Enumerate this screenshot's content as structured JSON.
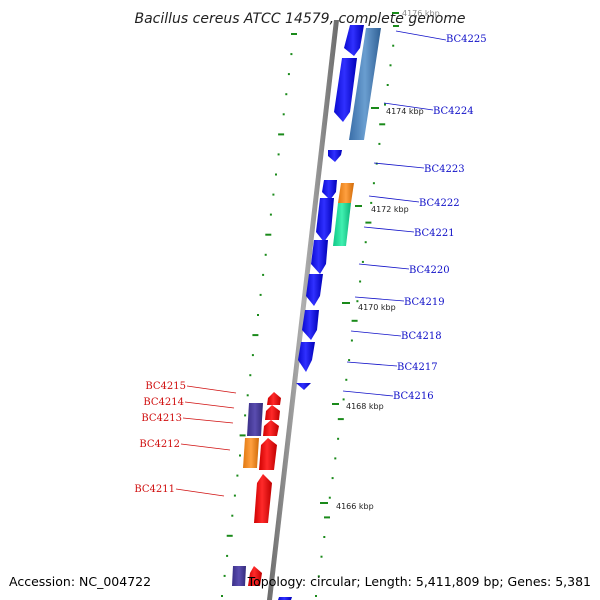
{
  "title": "Bacillus cereus ATCC 14579, complete genome",
  "footer": {
    "accession": "Accession: NC_004722",
    "summary": "Topology: circular; Length: 5,411,809 bp; Genes: 5,381"
  },
  "colors": {
    "forward_gene": "#1414ee",
    "reverse_gene": "#ee1414",
    "cog_steelblue": "#4a82b8",
    "cog_orange": "#f08a1a",
    "cog_green": "#20e09a",
    "cog_purple": "#4a3d9a",
    "backbone": "#888888",
    "ticks": "#1a8a1a",
    "label_blue": "#1010c8",
    "label_red": "#d01010"
  },
  "kbp_markers": [
    "4176 kbp",
    "4174 kbp",
    "4172 kbp",
    "4170 kbp",
    "4168 kbp",
    "4166 kbp"
  ],
  "forward_gene_labels": [
    "BC4225",
    "BC4224",
    "BC4223",
    "BC4222",
    "BC4221",
    "BC4220",
    "BC4219",
    "BC4218",
    "BC4217",
    "BC4216"
  ],
  "reverse_gene_labels": [
    "BC4215",
    "BC4214",
    "BC4213",
    "BC4212",
    "BC4211"
  ]
}
